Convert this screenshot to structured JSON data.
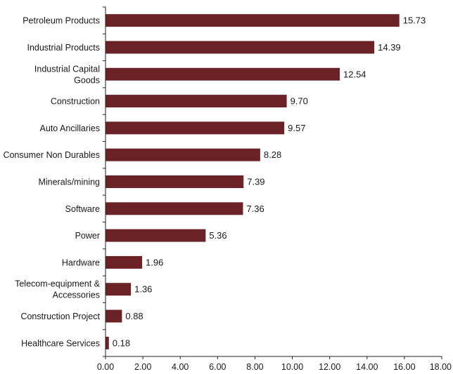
{
  "chart_data": {
    "type": "bar",
    "orientation": "horizontal",
    "title": "",
    "xlabel": "",
    "ylabel": "",
    "categories": [
      [
        "Petroleum Products"
      ],
      [
        "Industrial Products"
      ],
      [
        "Industrial Capital",
        "Goods"
      ],
      [
        "Construction"
      ],
      [
        "Auto Ancillaries"
      ],
      [
        "Consumer Non Durables"
      ],
      [
        "Minerals/mining"
      ],
      [
        "Software"
      ],
      [
        "Power"
      ],
      [
        "Hardware"
      ],
      [
        "Telecom-equipment &",
        "Accessories"
      ],
      [
        "Construction Project"
      ],
      [
        "Healthcare Services"
      ]
    ],
    "values": [
      15.73,
      14.39,
      12.54,
      9.7,
      9.57,
      8.28,
      7.39,
      7.36,
      5.36,
      1.96,
      1.36,
      0.88,
      0.18
    ],
    "value_labels": [
      "15.73",
      "14.39",
      "12.54",
      "9.70",
      "9.57",
      "8.28",
      "7.39",
      "7.36",
      "5.36",
      "1.96",
      "1.36",
      "0.88",
      "0.18"
    ],
    "xlim": [
      0,
      18
    ],
    "xticks": [
      0,
      2,
      4,
      6,
      8,
      10,
      12,
      14,
      16,
      18
    ],
    "xtick_labels": [
      "0.00",
      "2.00",
      "4.00",
      "6.00",
      "8.00",
      "10.00",
      "12.00",
      "14.00",
      "16.00",
      "18.00"
    ],
    "grid": false,
    "legend": "none",
    "bar_color": "#6b2226"
  }
}
